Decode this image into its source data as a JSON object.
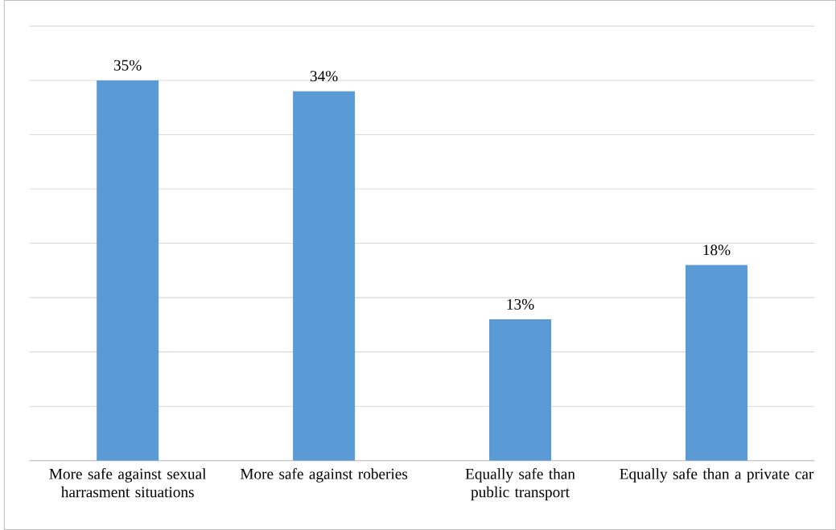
{
  "chart_data": {
    "type": "bar",
    "categories": [
      "More safe against sexual harrasment situations",
      "More safe against roberies",
      "Equally safe than public transport",
      "Equally safe than a private car"
    ],
    "values": [
      35,
      34,
      13,
      18
    ],
    "value_labels": [
      "35%",
      "34%",
      "13%",
      "18%"
    ],
    "color": "#5b9bd5",
    "ylim": [
      0,
      40
    ],
    "tick_labels": "x",
    "grid": "y"
  }
}
